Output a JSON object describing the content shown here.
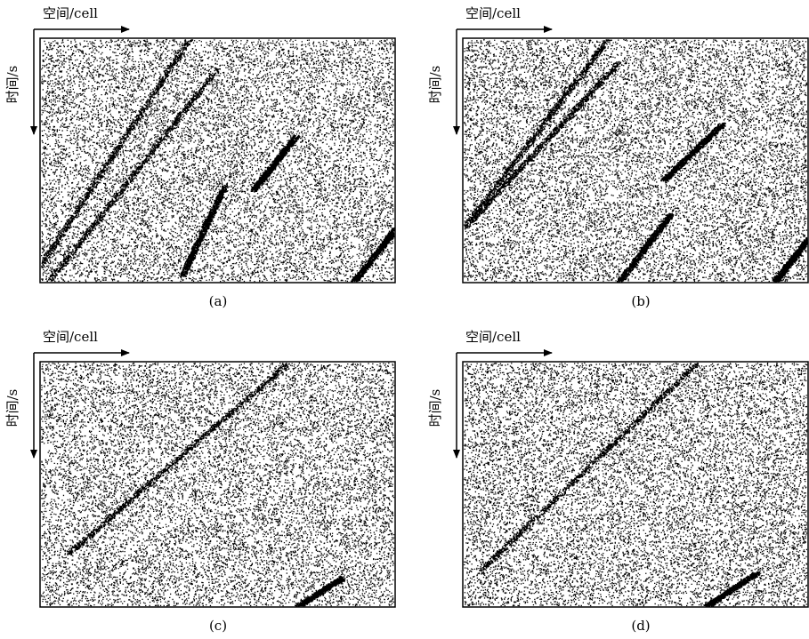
{
  "panels": [
    {
      "x_label": "空间/cell",
      "y_label": "时间/s",
      "caption": "(a)"
    },
    {
      "x_label": "空间/cell",
      "y_label": "时间/s",
      "caption": "(b)"
    },
    {
      "x_label": "空间/cell",
      "y_label": "时间/s",
      "caption": "(c)"
    },
    {
      "x_label": "空间/cell",
      "y_label": "时间/s",
      "caption": "(d)"
    }
  ]
}
